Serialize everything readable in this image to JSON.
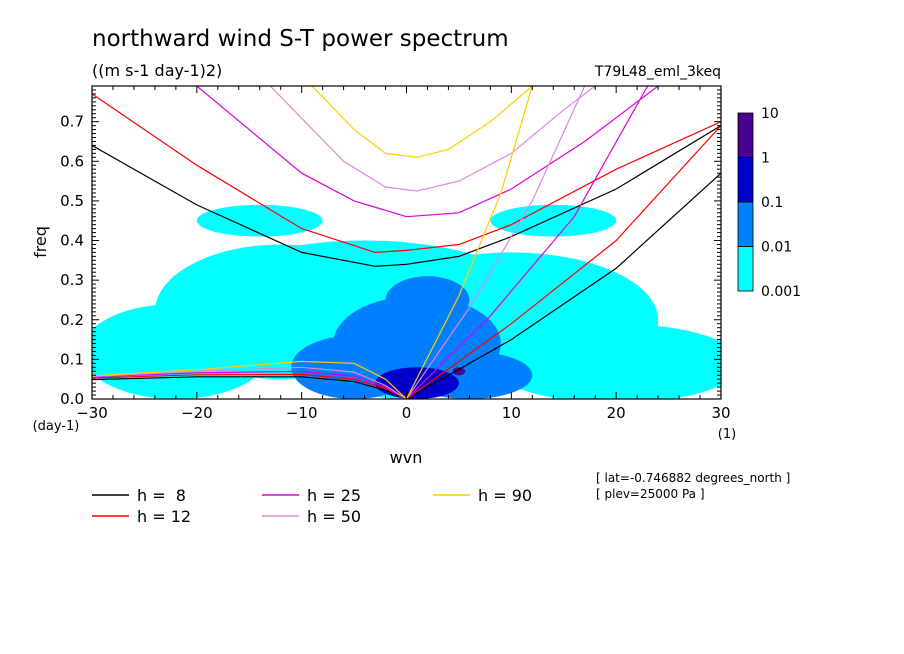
{
  "chart_data": {
    "type": "heatmap",
    "title": "northward wind S-T power spectrum",
    "subtitle": "((m s-1 day-1)2)",
    "experiment": "T79L48_eml_3keq",
    "xlabel": "wvn",
    "ylabel": "freq",
    "x_unit": "(1)",
    "y_unit": "(day-1)",
    "xlim": [
      -30,
      30
    ],
    "ylim": [
      0,
      0.79
    ],
    "x_ticks": [
      -30,
      -20,
      -10,
      0,
      10,
      20,
      30
    ],
    "x_tick_labels": [
      "−30",
      "−20",
      "−10",
      "0",
      "10",
      "20",
      "30"
    ],
    "y_ticks": [
      0,
      0.1,
      0.2,
      0.3,
      0.4,
      0.5,
      0.6,
      0.7
    ],
    "y_tick_labels": [
      "0.0",
      "0.1",
      "0.2",
      "0.3",
      "0.4",
      "0.5",
      "0.6",
      "0.7"
    ],
    "colorbar": {
      "levels": [
        "0.001",
        "0.01",
        "0.1",
        "1",
        "10"
      ],
      "colors": [
        "#00ffff",
        "#0080ff",
        "#0000cc",
        "#4b0090"
      ]
    },
    "blobs": [
      {
        "x": 0,
        "y": 0.16,
        "rx": 11,
        "ry": 0.16,
        "level": 0
      },
      {
        "x": -4,
        "y": 0.27,
        "rx": 15,
        "ry": 0.13,
        "level": 0
      },
      {
        "x": -12,
        "y": 0.22,
        "rx": 12,
        "ry": 0.17,
        "level": 0
      },
      {
        "x": 10,
        "y": 0.2,
        "rx": 14,
        "ry": 0.17,
        "level": 0
      },
      {
        "x": -22,
        "y": 0.12,
        "rx": 9,
        "ry": 0.12,
        "level": 0
      },
      {
        "x": 20,
        "y": 0.09,
        "rx": 12,
        "ry": 0.1,
        "level": 0
      },
      {
        "x": -14,
        "y": 0.45,
        "rx": 6,
        "ry": 0.04,
        "level": 0
      },
      {
        "x": 14,
        "y": 0.45,
        "rx": 6,
        "ry": 0.04,
        "level": 0
      },
      {
        "x": 1,
        "y": 0.14,
        "rx": 8,
        "ry": 0.12,
        "level": 1
      },
      {
        "x": -5,
        "y": 0.08,
        "rx": 6,
        "ry": 0.08,
        "level": 1
      },
      {
        "x": 6,
        "y": 0.06,
        "rx": 6,
        "ry": 0.06,
        "level": 1
      },
      {
        "x": 2,
        "y": 0.25,
        "rx": 4,
        "ry": 0.06,
        "level": 1
      },
      {
        "x": 1,
        "y": 0.04,
        "rx": 4,
        "ry": 0.04,
        "level": 2
      },
      {
        "x": 5,
        "y": 0.07,
        "rx": 0.6,
        "ry": 0.01,
        "level": 3
      }
    ],
    "series": [
      {
        "name": "h =  8",
        "h": 8,
        "color": "#000000"
      },
      {
        "name": "h = 12",
        "h": 12,
        "color": "#ff0000"
      },
      {
        "name": "h = 25",
        "h": 25,
        "color": "#dd00dd"
      },
      {
        "name": "h = 50",
        "h": 50,
        "color": "#dd88dd"
      },
      {
        "name": "h = 90",
        "h": 90,
        "color": "#ffcc00"
      }
    ],
    "curves": [
      {
        "h": 8,
        "color": "#000000",
        "pts": [
          [
            -30,
            0.64
          ],
          [
            -20,
            0.49
          ],
          [
            -10,
            0.37
          ],
          [
            -3,
            0.335
          ],
          [
            0,
            0.34
          ],
          [
            5,
            0.36
          ],
          [
            10,
            0.41
          ],
          [
            20,
            0.53
          ],
          [
            30,
            0.69
          ]
        ]
      },
      {
        "h": 12,
        "color": "#ff0000",
        "pts": [
          [
            -30,
            0.77
          ],
          [
            -20,
            0.59
          ],
          [
            -10,
            0.43
          ],
          [
            -3,
            0.37
          ],
          [
            0,
            0.375
          ],
          [
            5,
            0.39
          ],
          [
            10,
            0.44
          ],
          [
            20,
            0.58
          ],
          [
            30,
            0.7
          ]
        ]
      },
      {
        "h": 25,
        "color": "#dd00dd",
        "pts": [
          [
            -20,
            0.79
          ],
          [
            -10,
            0.57
          ],
          [
            -5,
            0.5
          ],
          [
            0,
            0.46
          ],
          [
            5,
            0.47
          ],
          [
            10,
            0.53
          ],
          [
            17,
            0.65
          ],
          [
            24,
            0.79
          ]
        ]
      },
      {
        "h": 50,
        "color": "#dd88dd",
        "pts": [
          [
            -13,
            0.79
          ],
          [
            -6,
            0.6
          ],
          [
            -2,
            0.535
          ],
          [
            1,
            0.525
          ],
          [
            5,
            0.55
          ],
          [
            10,
            0.62
          ],
          [
            15,
            0.73
          ],
          [
            18,
            0.79
          ]
        ]
      },
      {
        "h": 90,
        "color": "#ffcc00",
        "pts": [
          [
            -9,
            0.79
          ],
          [
            -5,
            0.68
          ],
          [
            -2,
            0.62
          ],
          [
            1,
            0.61
          ],
          [
            4,
            0.63
          ],
          [
            8,
            0.7
          ],
          [
            12,
            0.79
          ]
        ]
      },
      {
        "h": 8,
        "color": "#000000",
        "pts": [
          [
            0,
            0
          ],
          [
            10,
            0.15
          ],
          [
            20,
            0.33
          ],
          [
            30,
            0.57
          ]
        ]
      },
      {
        "h": 12,
        "color": "#ff0000",
        "pts": [
          [
            0,
            0
          ],
          [
            10,
            0.19
          ],
          [
            20,
            0.4
          ],
          [
            30,
            0.69
          ]
        ]
      },
      {
        "h": 25,
        "color": "#dd00dd",
        "pts": [
          [
            0,
            0
          ],
          [
            8,
            0.21
          ],
          [
            16,
            0.46
          ],
          [
            23,
            0.79
          ]
        ]
      },
      {
        "h": 50,
        "color": "#dd88dd",
        "pts": [
          [
            0,
            0
          ],
          [
            6,
            0.23
          ],
          [
            12,
            0.5
          ],
          [
            17,
            0.79
          ]
        ]
      },
      {
        "h": 90,
        "color": "#ffcc00",
        "pts": [
          [
            0,
            0
          ],
          [
            5,
            0.26
          ],
          [
            9,
            0.52
          ],
          [
            12,
            0.79
          ]
        ]
      },
      {
        "h": 8,
        "color": "#000000",
        "pts": [
          [
            -30,
            0.049
          ],
          [
            -20,
            0.056
          ],
          [
            -10,
            0.056
          ],
          [
            -5,
            0.044
          ],
          [
            -2,
            0.022
          ],
          [
            0,
            0
          ]
        ]
      },
      {
        "h": 12,
        "color": "#ff0000",
        "pts": [
          [
            -30,
            0.053
          ],
          [
            -20,
            0.061
          ],
          [
            -10,
            0.062
          ],
          [
            -5,
            0.05
          ],
          [
            -2,
            0.026
          ],
          [
            0,
            0
          ]
        ]
      },
      {
        "h": 25,
        "color": "#dd00dd",
        "pts": [
          [
            -30,
            0.056
          ],
          [
            -20,
            0.066
          ],
          [
            -10,
            0.07
          ],
          [
            -5,
            0.058
          ],
          [
            -2,
            0.03
          ],
          [
            0,
            0
          ]
        ]
      },
      {
        "h": 50,
        "color": "#dd88dd",
        "pts": [
          [
            -30,
            0.057
          ],
          [
            -20,
            0.07
          ],
          [
            -10,
            0.08
          ],
          [
            -5,
            0.068
          ],
          [
            -2,
            0.034
          ],
          [
            0,
            0
          ]
        ]
      },
      {
        "h": 90,
        "color": "#ffcc00",
        "pts": [
          [
            -30,
            0.058
          ],
          [
            -20,
            0.074
          ],
          [
            -10,
            0.095
          ],
          [
            -5,
            0.09
          ],
          [
            -2,
            0.05
          ],
          [
            0,
            0
          ]
        ]
      }
    ],
    "info": [
      "[ lat=-0.746882 degrees_north ]",
      "[ plev=25000 Pa ]"
    ]
  }
}
